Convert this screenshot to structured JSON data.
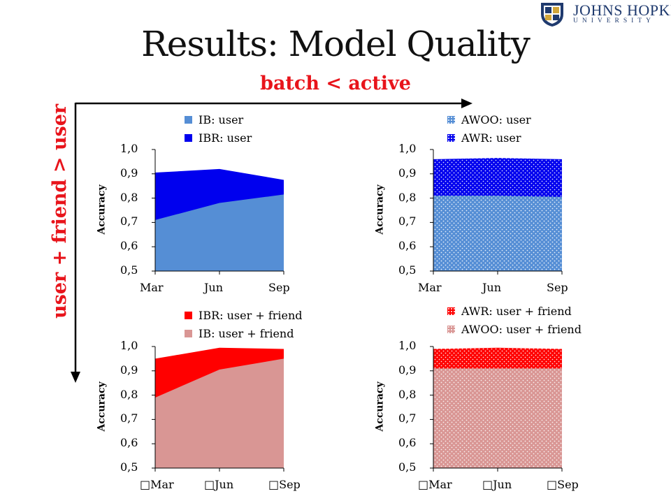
{
  "header": {
    "title": "Results: Model Quality",
    "subtitle": "batch < active",
    "row_axis_label": "user + friend > user",
    "logo": {
      "name": "JOHNS HOPKINS",
      "sub": "UNIVERSITY",
      "color": "#1f3a6e"
    },
    "accent": "#e8141b"
  },
  "chart_data": [
    {
      "type": "area",
      "ylabel": "Accuracy",
      "ylim": [
        0.5,
        1.0
      ],
      "yticks": [
        "0,5",
        "0,6",
        "0,7",
        "0,8",
        "0,9",
        "1,0"
      ],
      "categories": [
        "Mar",
        "Jun",
        "Sep"
      ],
      "series": [
        {
          "name": "IB: user",
          "values": [
            0.71,
            0.78,
            0.815
          ],
          "color": "#558ed5",
          "pattern": "solid"
        },
        {
          "name": "IBR: user",
          "values": [
            0.905,
            0.92,
            0.875
          ],
          "color": "#0000ee",
          "pattern": "solid"
        }
      ],
      "legend_order": [
        0,
        1
      ]
    },
    {
      "type": "area",
      "ylabel": "Accuracy",
      "ylim": [
        0.5,
        1.0
      ],
      "yticks": [
        "0,5",
        "0,6",
        "0,7",
        "0,8",
        "0,9",
        "1,0"
      ],
      "categories": [
        "Mar",
        "Jun",
        "Sep"
      ],
      "series": [
        {
          "name": "AWOO: user",
          "values": [
            0.81,
            0.81,
            0.805
          ],
          "color": "#558ed5",
          "pattern": "dots"
        },
        {
          "name": "AWR: user",
          "values": [
            0.96,
            0.965,
            0.96
          ],
          "color": "#0000ee",
          "pattern": "dots"
        }
      ],
      "legend_order": [
        0,
        1
      ]
    },
    {
      "type": "area",
      "ylabel": "Accuracy",
      "ylim": [
        0.5,
        1.0
      ],
      "yticks": [
        "0,5",
        "0,6",
        "0,7",
        "0,8",
        "0,9",
        "1,0"
      ],
      "categories": [
        "Mar",
        "Jun",
        "Sep"
      ],
      "series": [
        {
          "name": "IB: user + friend",
          "values": [
            0.79,
            0.905,
            0.95
          ],
          "color": "#d99694",
          "pattern": "solid"
        },
        {
          "name": "IBR: user + friend",
          "values": [
            0.95,
            0.995,
            0.99
          ],
          "color": "#ff0000",
          "pattern": "solid"
        }
      ],
      "legend_order": [
        1,
        0
      ]
    },
    {
      "type": "area",
      "ylabel": "Accuracy",
      "ylim": [
        0.5,
        1.0
      ],
      "yticks": [
        "0,5",
        "0,6",
        "0,7",
        "0,8",
        "0,9",
        "1,0"
      ],
      "categories": [
        "Mar",
        "Jun",
        "Sep"
      ],
      "series": [
        {
          "name": "AWOO: user + friend",
          "values": [
            0.91,
            0.91,
            0.91
          ],
          "color": "#d99694",
          "pattern": "dots"
        },
        {
          "name": "AWR: user + friend",
          "values": [
            0.99,
            0.995,
            0.99
          ],
          "color": "#ff0000",
          "pattern": "dots"
        }
      ],
      "legend_order": [
        1,
        0
      ]
    }
  ]
}
